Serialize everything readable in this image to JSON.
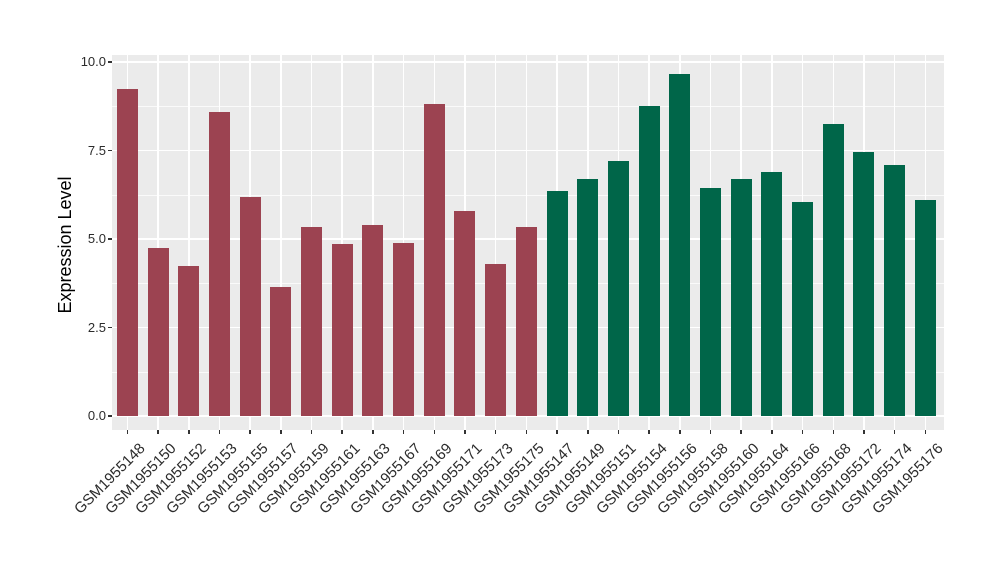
{
  "chart_data": {
    "type": "bar",
    "title": "",
    "xlabel": "",
    "ylabel": "Expression Level",
    "ylim": [
      0,
      10.2
    ],
    "yticks": [
      0,
      2.5,
      5,
      7.5,
      10
    ],
    "ytick_labels": [
      "0.0",
      "2.5",
      "5.0",
      "7.5",
      "10.0"
    ],
    "minor_gridlines": [
      1.25,
      3.75,
      6.25,
      8.75
    ],
    "grid_on": true,
    "legend_position": "none",
    "colors": {
      "maroon": "#9C4351",
      "green": "#006649",
      "panel_background": "#EBEBEB",
      "gridline": "#FFFFFF",
      "axis_text": "#2B2B2B",
      "axis_title": "#000000",
      "tick_mark": "#333333"
    },
    "bars": [
      {
        "label": "GSM1955148",
        "value": 9.25,
        "group": "maroon"
      },
      {
        "label": "GSM1955150",
        "value": 4.75,
        "group": "maroon"
      },
      {
        "label": "GSM1955152",
        "value": 4.25,
        "group": "maroon"
      },
      {
        "label": "GSM1955153",
        "value": 8.6,
        "group": "maroon"
      },
      {
        "label": "GSM1955155",
        "value": 6.2,
        "group": "maroon"
      },
      {
        "label": "GSM1955157",
        "value": 3.65,
        "group": "maroon"
      },
      {
        "label": "GSM1955159",
        "value": 5.35,
        "group": "maroon"
      },
      {
        "label": "GSM1955161",
        "value": 4.85,
        "group": "maroon"
      },
      {
        "label": "GSM1955163",
        "value": 5.4,
        "group": "maroon"
      },
      {
        "label": "GSM1955167",
        "value": 4.9,
        "group": "maroon"
      },
      {
        "label": "GSM1955169",
        "value": 8.8,
        "group": "maroon"
      },
      {
        "label": "GSM1955171",
        "value": 5.8,
        "group": "maroon"
      },
      {
        "label": "GSM1955173",
        "value": 4.3,
        "group": "maroon"
      },
      {
        "label": "GSM1955175",
        "value": 5.35,
        "group": "maroon"
      },
      {
        "label": "GSM1955147",
        "value": 6.35,
        "group": "green"
      },
      {
        "label": "GSM1955149",
        "value": 6.7,
        "group": "green"
      },
      {
        "label": "GSM1955151",
        "value": 7.2,
        "group": "green"
      },
      {
        "label": "GSM1955154",
        "value": 8.75,
        "group": "green"
      },
      {
        "label": "GSM1955156",
        "value": 9.65,
        "group": "green"
      },
      {
        "label": "GSM1955158",
        "value": 6.45,
        "group": "green"
      },
      {
        "label": "GSM1955160",
        "value": 6.7,
        "group": "green"
      },
      {
        "label": "GSM1955164",
        "value": 6.9,
        "group": "green"
      },
      {
        "label": "GSM1955166",
        "value": 6.05,
        "group": "green"
      },
      {
        "label": "GSM1955168",
        "value": 8.25,
        "group": "green"
      },
      {
        "label": "GSM1955172",
        "value": 7.45,
        "group": "green"
      },
      {
        "label": "GSM1955174",
        "value": 7.1,
        "group": "green"
      },
      {
        "label": "GSM1955176",
        "value": 6.1,
        "group": "green"
      }
    ]
  }
}
